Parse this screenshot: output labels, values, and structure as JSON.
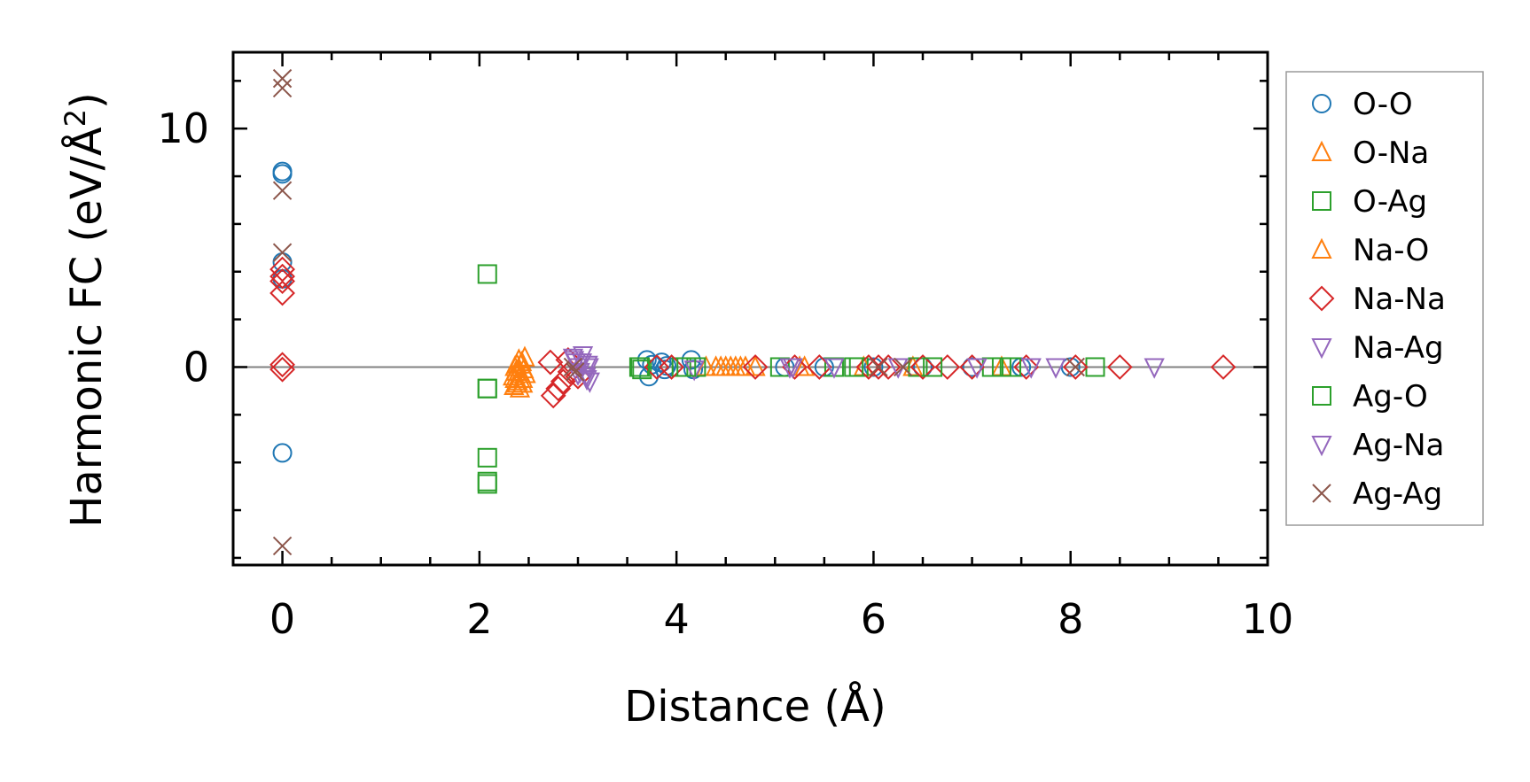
{
  "chart_data": {
    "type": "scatter",
    "xlabel": "Distance (Å)",
    "ylabel_main": "Harmonic FC (eV/Å",
    "ylabel_sup": "2",
    "ylabel_close": ")",
    "xlim": [
      -0.5,
      10
    ],
    "ylim": [
      -8.3,
      13.2
    ],
    "xticks": [
      0,
      2,
      4,
      6,
      8,
      10
    ],
    "xtick_labels": [
      "0",
      "2",
      "4",
      "6",
      "8",
      "10"
    ],
    "yticks": [
      0,
      10
    ],
    "ytick_labels": [
      "0",
      "10"
    ],
    "x_minor_step": 0.5,
    "y_minor_step": 2,
    "zero_line": true,
    "grid": false,
    "legend_position": "outside-right",
    "series": [
      {
        "name": "O-O",
        "marker": "circle",
        "color": "#1f77b4",
        "points": [
          [
            0,
            8.2
          ],
          [
            0,
            8.1
          ],
          [
            0,
            4.4
          ],
          [
            0,
            3.7
          ],
          [
            0,
            -3.6
          ],
          [
            3.7,
            0.3
          ],
          [
            3.72,
            -0.4
          ],
          [
            3.75,
            0.1
          ],
          [
            3.85,
            0.2
          ],
          [
            3.88,
            -0.1
          ],
          [
            3.9,
            0.05
          ],
          [
            4.15,
            0.3
          ],
          [
            4.17,
            -0.1
          ],
          [
            5.1,
            0.0
          ],
          [
            5.5,
            0.0
          ],
          [
            6.0,
            0.0
          ],
          [
            6.5,
            0.0
          ],
          [
            7.0,
            0.0
          ],
          [
            7.5,
            0.0
          ],
          [
            8.0,
            0.0
          ]
        ]
      },
      {
        "name": "O-Na",
        "marker": "triangle-up",
        "color": "#ff7f0e",
        "points": [
          [
            2.35,
            -0.8
          ],
          [
            2.36,
            -0.5
          ],
          [
            2.37,
            -0.2
          ],
          [
            2.38,
            0.1
          ],
          [
            2.39,
            -0.6
          ],
          [
            2.4,
            0.3
          ],
          [
            2.41,
            -0.9
          ],
          [
            2.42,
            -0.3
          ],
          [
            2.43,
            0.2
          ],
          [
            2.44,
            -0.7
          ],
          [
            2.45,
            -0.1
          ],
          [
            2.46,
            0.4
          ],
          [
            4.3,
            0.0
          ],
          [
            4.4,
            0.0
          ],
          [
            4.5,
            0.0
          ],
          [
            4.6,
            0.0
          ],
          [
            4.7,
            0.0
          ],
          [
            4.8,
            0.0
          ],
          [
            5.3,
            0.0
          ],
          [
            5.9,
            0.0
          ],
          [
            6.4,
            0.0
          ],
          [
            7.3,
            0.0
          ]
        ]
      },
      {
        "name": "O-Ag",
        "marker": "square",
        "color": "#2ca02c",
        "points": [
          [
            2.08,
            3.9
          ],
          [
            2.08,
            -0.9
          ],
          [
            2.08,
            -3.8
          ],
          [
            2.08,
            -4.8
          ],
          [
            2.08,
            -4.9
          ],
          [
            3.62,
            0.0
          ],
          [
            3.65,
            -0.1
          ],
          [
            4.05,
            0.0
          ],
          [
            4.2,
            0.0
          ],
          [
            5.05,
            0.0
          ],
          [
            5.6,
            0.0
          ],
          [
            5.85,
            0.0
          ],
          [
            6.45,
            0.0
          ],
          [
            7.2,
            0.0
          ],
          [
            7.3,
            0.0
          ],
          [
            8.25,
            0.0
          ]
        ]
      },
      {
        "name": "Na-O",
        "marker": "triangle-up",
        "color": "#ff7f0e",
        "points": [
          [
            2.34,
            -0.4
          ],
          [
            2.36,
            0.0
          ],
          [
            2.38,
            -0.7
          ],
          [
            2.4,
            -0.2
          ],
          [
            2.42,
            0.1
          ],
          [
            2.44,
            -0.5
          ],
          [
            2.47,
            -0.3
          ],
          [
            4.45,
            0.0
          ],
          [
            4.55,
            0.0
          ],
          [
            4.65,
            0.0
          ],
          [
            5.25,
            0.0
          ]
        ]
      },
      {
        "name": "Na-Na",
        "marker": "diamond",
        "color": "#d62728",
        "points": [
          [
            0,
            4.1
          ],
          [
            0,
            3.8
          ],
          [
            0,
            3.6
          ],
          [
            0,
            3.1
          ],
          [
            0,
            0.1
          ],
          [
            0,
            -0.1
          ],
          [
            2.72,
            0.2
          ],
          [
            2.75,
            -1.2
          ],
          [
            2.8,
            -0.9
          ],
          [
            2.85,
            -0.6
          ],
          [
            2.9,
            0.3
          ],
          [
            2.92,
            -0.2
          ],
          [
            3.0,
            -0.4
          ],
          [
            3.8,
            0.0
          ],
          [
            3.95,
            0.0
          ],
          [
            4.8,
            0.0
          ],
          [
            5.2,
            0.0
          ],
          [
            5.45,
            0.0
          ],
          [
            5.95,
            0.0
          ],
          [
            6.05,
            0.0
          ],
          [
            6.15,
            0.0
          ],
          [
            6.5,
            0.0
          ],
          [
            6.75,
            0.0
          ],
          [
            7.0,
            0.0
          ],
          [
            7.55,
            0.0
          ],
          [
            8.05,
            0.0
          ],
          [
            8.5,
            0.0
          ],
          [
            9.55,
            0.0
          ]
        ]
      },
      {
        "name": "Na-Ag",
        "marker": "triangle-down",
        "color": "#9467bd",
        "points": [
          [
            2.95,
            0.4
          ],
          [
            2.98,
            0.2
          ],
          [
            3.0,
            0.0
          ],
          [
            3.02,
            -0.2
          ],
          [
            3.05,
            0.5
          ],
          [
            3.08,
            -0.4
          ],
          [
            3.1,
            0.1
          ],
          [
            3.12,
            -0.6
          ],
          [
            4.18,
            -0.1
          ],
          [
            5.15,
            0.0
          ],
          [
            5.6,
            0.0
          ],
          [
            6.25,
            0.0
          ],
          [
            7.05,
            0.0
          ],
          [
            7.85,
            0.0
          ],
          [
            8.85,
            0.0
          ]
        ]
      },
      {
        "name": "Ag-O",
        "marker": "square",
        "color": "#2ca02c",
        "points": [
          [
            2.08,
            -0.9
          ],
          [
            3.63,
            0.0
          ],
          [
            4.1,
            0.0
          ],
          [
            5.8,
            0.0
          ],
          [
            6.6,
            0.0
          ],
          [
            7.4,
            0.0
          ]
        ]
      },
      {
        "name": "Ag-Na",
        "marker": "triangle-down",
        "color": "#9467bd",
        "points": [
          [
            2.96,
            0.3
          ],
          [
            3.0,
            -0.3
          ],
          [
            3.04,
            0.2
          ],
          [
            3.09,
            -0.5
          ],
          [
            3.11,
            0.0
          ],
          [
            5.18,
            0.0
          ],
          [
            7.6,
            0.0
          ]
        ]
      },
      {
        "name": "Ag-Ag",
        "marker": "x",
        "color": "#8c564b",
        "points": [
          [
            0,
            12.1
          ],
          [
            0,
            11.7
          ],
          [
            0,
            7.4
          ],
          [
            0,
            4.8
          ],
          [
            0,
            -7.5
          ],
          [
            2.95,
            0.0
          ],
          [
            2.97,
            -0.2
          ],
          [
            6.05,
            0.0
          ],
          [
            6.3,
            0.0
          ],
          [
            8.05,
            0.0
          ]
        ]
      }
    ]
  }
}
